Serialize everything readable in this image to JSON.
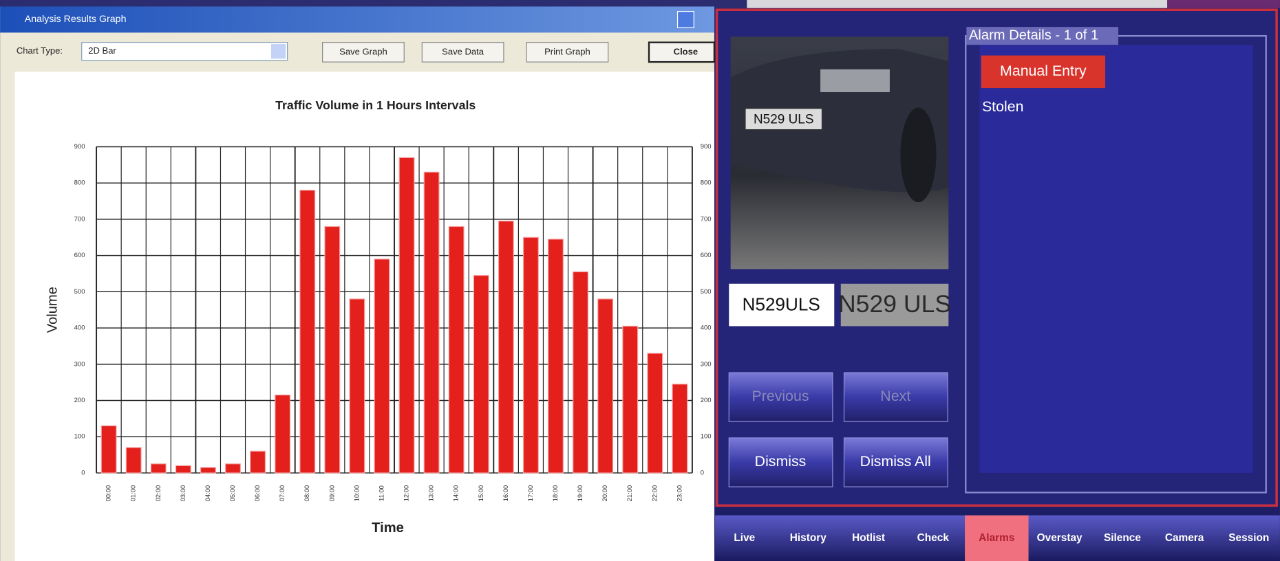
{
  "window": {
    "title": "Analysis Results Graph",
    "chart_type_label": "Chart Type:",
    "chart_type_value": "2D Bar",
    "buttons": [
      "Save Graph",
      "Save Data",
      "Print Graph",
      "Close"
    ]
  },
  "chart_data": {
    "type": "bar",
    "title": "Traffic Volume in 1 Hours Intervals",
    "x_label": "Time",
    "y_label": "Volume",
    "color": "#e3201b",
    "grid": true,
    "categories": [
      "00:00",
      "01:00",
      "02:00",
      "03:00",
      "04:00",
      "05:00",
      "06:00",
      "07:00",
      "08:00",
      "09:00",
      "10:00",
      "11:00",
      "12:00",
      "13:00",
      "14:00",
      "15:00",
      "16:00",
      "17:00",
      "18:00",
      "19:00",
      "20:00",
      "21:00",
      "22:00",
      "23:00"
    ],
    "values": [
      130,
      70,
      25,
      20,
      15,
      25,
      60,
      215,
      780,
      680,
      480,
      590,
      870,
      830,
      680,
      545,
      695,
      650,
      645,
      555,
      480,
      405,
      330,
      245
    ],
    "ylim": [
      0,
      900
    ],
    "yticks": [
      0,
      100,
      200,
      300,
      400,
      500,
      600,
      700,
      800,
      900
    ]
  },
  "anpr": {
    "image_plate": "N529 ULS",
    "read_plate": "N529ULS",
    "plate_crop": "N529 ULS",
    "buttons": [
      "Previous",
      "Next",
      "Dismiss",
      "Dismiss All"
    ],
    "alarm_title": "Alarm Details - 1 of 1",
    "alarm_source": "Manual Entry",
    "alarm_reason": "Stolen",
    "tabs": [
      "Live",
      "History",
      "Hotlist",
      "Check",
      "Alarms",
      "Overstay",
      "Silence",
      "Camera",
      "Session"
    ]
  }
}
